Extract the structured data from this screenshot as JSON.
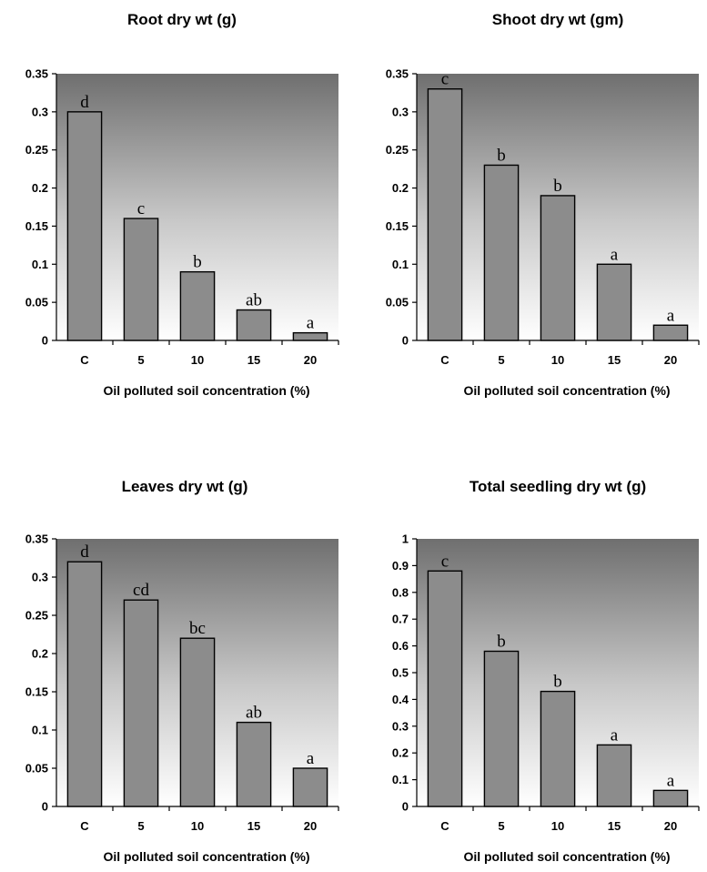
{
  "chart_data": [
    {
      "type": "bar",
      "title": "Root dry wt (g)",
      "xlabel": "Oil polluted soil concentration (%)",
      "ylabel": "",
      "categories": [
        "C",
        "5",
        "10",
        "15",
        "20"
      ],
      "values": [
        0.3,
        0.16,
        0.09,
        0.04,
        0.01
      ],
      "letters": [
        "d",
        "c",
        "b",
        "ab",
        "a"
      ],
      "ylim": [
        0,
        0.35
      ],
      "yticks": [
        "0",
        "0.05",
        "0.1",
        "0.15",
        "0.2",
        "0.25",
        "0.3",
        "0.35"
      ],
      "ytick_values": [
        0,
        0.05,
        0.1,
        0.15,
        0.2,
        0.25,
        0.3,
        0.35
      ],
      "grid": false,
      "bar_color": "#8c8c8c",
      "background": "gradient dark-gray top to white bottom"
    },
    {
      "type": "bar",
      "title": "Shoot dry wt (gm)",
      "xlabel": "Oil  polluted soil concentration (%)",
      "ylabel": "",
      "categories": [
        "C",
        "5",
        "10",
        "15",
        "20"
      ],
      "values": [
        0.33,
        0.23,
        0.19,
        0.1,
        0.02
      ],
      "letters": [
        "c",
        "b",
        "b",
        "a",
        "a"
      ],
      "ylim": [
        0,
        0.35
      ],
      "yticks": [
        "0",
        "0.05",
        "0.1",
        "0.15",
        "0.2",
        "0.25",
        "0.3",
        "0.35"
      ],
      "ytick_values": [
        0,
        0.05,
        0.1,
        0.15,
        0.2,
        0.25,
        0.3,
        0.35
      ],
      "grid": false,
      "bar_color": "#8c8c8c",
      "background": "gradient dark-gray top to white bottom"
    },
    {
      "type": "bar",
      "title": "Leaves dry wt (g)",
      "xlabel": "Oil  polluted soil concentration (%)",
      "ylabel": "",
      "categories": [
        "C",
        "5",
        "10",
        "15",
        "20"
      ],
      "values": [
        0.32,
        0.27,
        0.22,
        0.11,
        0.05
      ],
      "letters": [
        "d",
        "cd",
        "bc",
        "ab",
        "a"
      ],
      "ylim": [
        0,
        0.35
      ],
      "yticks": [
        "0",
        "0.05",
        "0.1",
        "0.15",
        "0.2",
        "0.25",
        "0.3",
        "0.35"
      ],
      "ytick_values": [
        0,
        0.05,
        0.1,
        0.15,
        0.2,
        0.25,
        0.3,
        0.35
      ],
      "grid": false,
      "bar_color": "#8c8c8c",
      "background": "gradient dark-gray top to white bottom"
    },
    {
      "type": "bar",
      "title": "Total seedling dry wt (g)",
      "xlabel": "Oil  polluted soil concentration (%)",
      "ylabel": "",
      "categories": [
        "C",
        "5",
        "10",
        "15",
        "20"
      ],
      "values": [
        0.88,
        0.58,
        0.43,
        0.23,
        0.06
      ],
      "letters": [
        "c",
        "b",
        "b",
        "a",
        "a"
      ],
      "ylim": [
        0,
        1.0
      ],
      "yticks": [
        "0",
        "0.1",
        "0.2",
        "0.3",
        "0.4",
        "0.5",
        "0.6",
        "0.7",
        "0.8",
        "0.9",
        "1"
      ],
      "ytick_values": [
        0,
        0.1,
        0.2,
        0.3,
        0.4,
        0.5,
        0.6,
        0.7,
        0.8,
        0.9,
        1.0
      ],
      "grid": false,
      "bar_color": "#8c8c8c",
      "background": "gradient dark-gray top to white bottom"
    }
  ]
}
